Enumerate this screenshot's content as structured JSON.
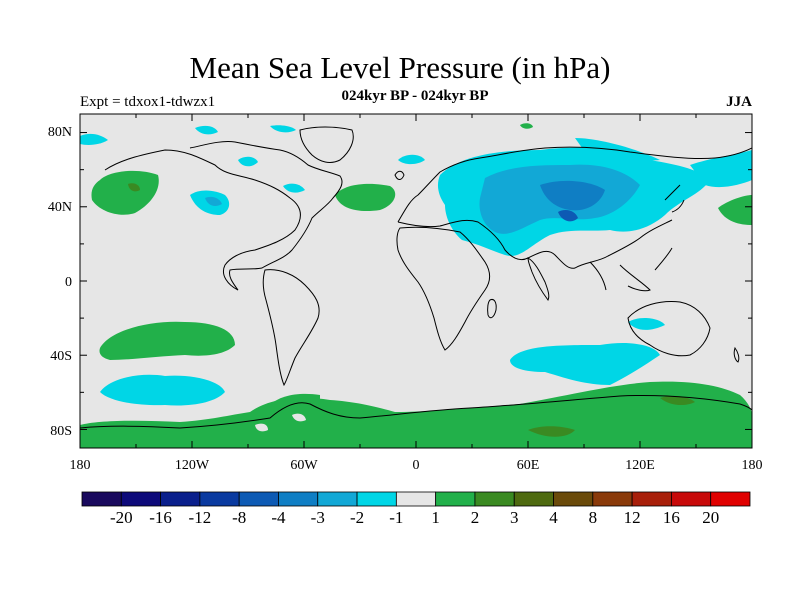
{
  "title": "Mean Sea Level Pressure (in hPa)",
  "subtitle": "024kyr BP - 024kyr BP",
  "experiment": "Expt = tdxox1-tdwzx1",
  "season": "JJA",
  "x_axis_labels": [
    "180",
    "120W",
    "60W",
    "0",
    "60E",
    "120E",
    "180"
  ],
  "y_axis_labels": [
    "80N",
    "40N",
    "0",
    "40S",
    "80S"
  ],
  "colorbar": {
    "labels": [
      "-20",
      "-16",
      "-12",
      "-8",
      "-4",
      "-3",
      "-2",
      "-1",
      "1",
      "2",
      "3",
      "4",
      "8",
      "12",
      "16",
      "20"
    ],
    "colors": [
      "#1a0a5e",
      "#0d0a7a",
      "#0a1f8c",
      "#0a3aa0",
      "#0d5ab4",
      "#0f7ec4",
      "#12a8d6",
      "#00d6e6",
      "#e6e6e6",
      "#22b04a",
      "#3a8a22",
      "#4e6a10",
      "#6a4a0a",
      "#8a3a0a",
      "#a81f0a",
      "#c80a0a",
      "#e00000"
    ]
  },
  "map_colors": {
    "background": "#e6e6e6",
    "neg1": "#00d6e6",
    "neg2": "#12a8d6",
    "neg3": "#0f7ec4",
    "neg4": "#0d5ab4",
    "pos1": "#22b04a",
    "pos2": "#3a8a22",
    "pos3": "#4e6a10"
  }
}
